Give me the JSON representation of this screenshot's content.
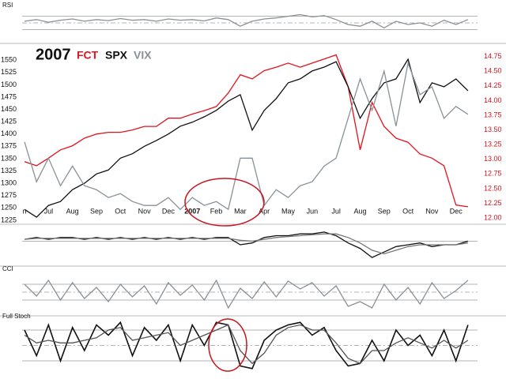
{
  "chart_data": [
    {
      "type": "line",
      "title": "RSI",
      "x": [
        0,
        0.5,
        1,
        1.5,
        2,
        2.5,
        3,
        3.5,
        4,
        4.5,
        5,
        5.5,
        6,
        6.5,
        7,
        7.5,
        8,
        8.5,
        9,
        9.5,
        10,
        10.5,
        11,
        11.5,
        12,
        12.5,
        13,
        13.5,
        14,
        14.5,
        15,
        15.5,
        16,
        16.5,
        17,
        17.5,
        18,
        18.5
      ],
      "xlim": [
        -0.1,
        18.9
      ],
      "ylim": [
        0,
        100
      ],
      "reference_lines": [
        30,
        50,
        70
      ],
      "series": [
        {
          "color": "#8a9196",
          "values": [
            55,
            60,
            52,
            58,
            62,
            55,
            60,
            57,
            63,
            58,
            60,
            55,
            62,
            58,
            60,
            56,
            65,
            60,
            40,
            55,
            62,
            65,
            70,
            75,
            68,
            72,
            60,
            45,
            40,
            55,
            35,
            55,
            45,
            50,
            40,
            58,
            45,
            60
          ]
        }
      ]
    },
    {
      "type": "line",
      "title": "2007",
      "x": [
        0,
        0.5,
        1,
        1.5,
        2,
        2.5,
        3,
        3.5,
        4,
        4.5,
        5,
        5.5,
        6,
        6.5,
        7,
        7.5,
        8,
        8.5,
        9,
        9.5,
        10,
        10.5,
        11,
        11.5,
        12,
        12.5,
        13,
        13.5,
        14,
        14.5,
        15,
        15.5,
        16,
        16.5,
        17,
        17.5,
        18,
        18.5
      ],
      "xlim": [
        -0.1,
        18.9
      ],
      "xticks": [
        {
          "value": 0,
          "label": "n"
        },
        {
          "value": 1,
          "label": "Jul"
        },
        {
          "value": 2,
          "label": "Aug"
        },
        {
          "value": 3,
          "label": "Sep"
        },
        {
          "value": 4,
          "label": "Oct"
        },
        {
          "value": 5,
          "label": "Nov"
        },
        {
          "value": 6,
          "label": "Dec"
        },
        {
          "value": 7,
          "label": "2007"
        },
        {
          "value": 8,
          "label": "Feb"
        },
        {
          "value": 9,
          "label": "Mar"
        },
        {
          "value": 10,
          "label": "Apr"
        },
        {
          "value": 11,
          "label": "May"
        },
        {
          "value": 12,
          "label": "Jun"
        },
        {
          "value": 13,
          "label": "Jul"
        },
        {
          "value": 14,
          "label": "Aug"
        },
        {
          "value": 15,
          "label": "Sep"
        },
        {
          "value": 16,
          "label": "Oct"
        },
        {
          "value": 17,
          "label": "Nov"
        },
        {
          "value": 18,
          "label": "Dec"
        }
      ],
      "ylim": [
        1220,
        1568
      ],
      "yticks": [
        1550,
        1525,
        1500,
        1475,
        1450,
        1425,
        1400,
        1375,
        1350,
        1325,
        1300,
        1275,
        1250,
        1225
      ],
      "y2lim": [
        11.92,
        14.84
      ],
      "y2ticks": [
        14.75,
        {
          "value": 14.5,
          "label": "14.50"
        },
        14.25,
        {
          "value": 14,
          "label": "14.00"
        },
        13.75,
        {
          "value": 13.5,
          "label": "13.50"
        },
        13.25,
        {
          "value": 13,
          "label": "13.00"
        },
        12.75,
        {
          "value": 12.5,
          "label": "12.50"
        },
        12.25,
        {
          "value": 12,
          "label": "12.00"
        }
      ],
      "series": [
        {
          "name": "FCT",
          "color": "#e0141e",
          "axis": "y2",
          "values": [
            12.96,
            12.89,
            13.02,
            13.16,
            13.23,
            13.36,
            13.43,
            13.46,
            13.46,
            13.5,
            13.56,
            13.56,
            13.7,
            13.7,
            13.77,
            13.83,
            13.9,
            14.13,
            14.44,
            14.37,
            14.51,
            14.57,
            14.64,
            14.57,
            14.64,
            14.71,
            14.78,
            14.24,
            13.16,
            13.97,
            13.56,
            13.36,
            13.29,
            13.09,
            13.02,
            12.89,
            12.22,
            12.19
          ]
        },
        {
          "name": "SPX",
          "color": "#111111",
          "values": [
            1247,
            1231,
            1255,
            1263,
            1287,
            1300,
            1319,
            1327,
            1351,
            1360,
            1375,
            1387,
            1400,
            1416,
            1424,
            1435,
            1448,
            1467,
            1480,
            1408,
            1448,
            1472,
            1504,
            1512,
            1528,
            1536,
            1547,
            1496,
            1432,
            1472,
            1504,
            1512,
            1552,
            1464,
            1504,
            1496,
            1512,
            1488
          ]
        },
        {
          "name": "VIX",
          "color": "#8a9196",
          "values": [
            1384,
            1303,
            1351,
            1295,
            1335,
            1295,
            1287,
            1271,
            1279,
            1263,
            1255,
            1255,
            1271,
            1247,
            1271,
            1255,
            1263,
            1247,
            1351,
            1351,
            1255,
            1287,
            1271,
            1295,
            1303,
            1335,
            1351,
            1432,
            1512,
            1448,
            1528,
            1416,
            1544,
            1480,
            1496,
            1432,
            1456,
            1440
          ]
        }
      ]
    },
    {
      "type": "line",
      "x": [
        0,
        0.5,
        1,
        1.5,
        2,
        2.5,
        3,
        3.5,
        4,
        4.5,
        5,
        5.5,
        6,
        6.5,
        7,
        7.5,
        8,
        8.5,
        9,
        9.5,
        10,
        10.5,
        11,
        11.5,
        12,
        12.5,
        13,
        13.5,
        14,
        14.5,
        15,
        15.5,
        16,
        16.5,
        17,
        17.5,
        18,
        18.5
      ],
      "xlim": [
        -0.1,
        18.9
      ],
      "ylim": [
        -12,
        8
      ],
      "reference_lines": [
        0
      ],
      "series": [
        {
          "color": "#111111",
          "values": [
            1,
            2,
            1,
            2,
            2,
            1,
            2,
            1,
            2,
            1,
            2,
            1,
            2,
            1,
            2,
            1,
            2,
            2,
            -2,
            -1,
            2,
            3,
            3,
            4,
            4,
            5,
            3,
            -1,
            -4,
            -9,
            -6,
            -3,
            -2,
            -1,
            -3,
            -2,
            -2,
            0
          ]
        },
        {
          "color": "#777777",
          "values": [
            1,
            1.5,
            1.5,
            1.5,
            1.5,
            1.5,
            1.5,
            1.5,
            1.5,
            1.5,
            1.5,
            1.5,
            1.5,
            1.5,
            1.5,
            1.5,
            1.5,
            1.5,
            0.5,
            0,
            1,
            2,
            2.5,
            3,
            3.5,
            4,
            4,
            2,
            -1,
            -5,
            -7,
            -5,
            -3,
            -2,
            -2,
            -2,
            -2,
            -1
          ]
        }
      ]
    },
    {
      "type": "line",
      "title": "CCI",
      "x": [
        0,
        0.5,
        1,
        1.5,
        2,
        2.5,
        3,
        3.5,
        4,
        4.5,
        5,
        5.5,
        6,
        6.5,
        7,
        7.5,
        8,
        8.5,
        9,
        9.5,
        10,
        10.5,
        11,
        11.5,
        12,
        12.5,
        13,
        13.5,
        14,
        14.5,
        15,
        15.5,
        16,
        16.5,
        17,
        17.5,
        18,
        18.5
      ],
      "xlim": [
        -0.1,
        18.9
      ],
      "ylim": [
        -250,
        250
      ],
      "reference_lines": [
        -100,
        0,
        100
      ],
      "series": [
        {
          "color": "#8a9196",
          "values": [
            100,
            -50,
            150,
            -100,
            120,
            -80,
            60,
            -120,
            100,
            -60,
            80,
            -150,
            120,
            -40,
            90,
            -100,
            150,
            -200,
            50,
            -80,
            130,
            -60,
            140,
            40,
            120,
            -50,
            80,
            -180,
            -120,
            -200,
            100,
            -100,
            60,
            -150,
            120,
            -80,
            20,
            150
          ]
        }
      ]
    },
    {
      "type": "line",
      "title": "Full Stoch",
      "x": [
        0,
        0.5,
        1,
        1.5,
        2,
        2.5,
        3,
        3.5,
        4,
        4.5,
        5,
        5.5,
        6,
        6.5,
        7,
        7.5,
        8,
        8.5,
        9,
        9.5,
        10,
        10.5,
        11,
        11.5,
        12,
        12.5,
        13,
        13.5,
        14,
        14.5,
        15,
        15.5,
        16,
        16.5,
        17,
        17.5,
        18,
        18.5
      ],
      "xlim": [
        -0.1,
        18.9
      ],
      "ylim": [
        0,
        100
      ],
      "reference_lines": [
        20,
        50,
        80
      ],
      "series": [
        {
          "color": "#111111",
          "values": [
            80,
            30,
            90,
            20,
            85,
            40,
            90,
            70,
            95,
            30,
            85,
            60,
            90,
            20,
            90,
            50,
            95,
            90,
            10,
            5,
            60,
            80,
            90,
            95,
            70,
            85,
            40,
            10,
            15,
            60,
            20,
            80,
            50,
            70,
            30,
            80,
            20,
            90
          ]
        },
        {
          "color": "#555555",
          "values": [
            70,
            55,
            60,
            55,
            55,
            60,
            65,
            80,
            85,
            60,
            65,
            70,
            75,
            50,
            60,
            70,
            80,
            90,
            40,
            15,
            35,
            70,
            85,
            90,
            80,
            80,
            55,
            25,
            15,
            40,
            40,
            55,
            65,
            55,
            45,
            60,
            45,
            60
          ]
        }
      ]
    }
  ]
}
